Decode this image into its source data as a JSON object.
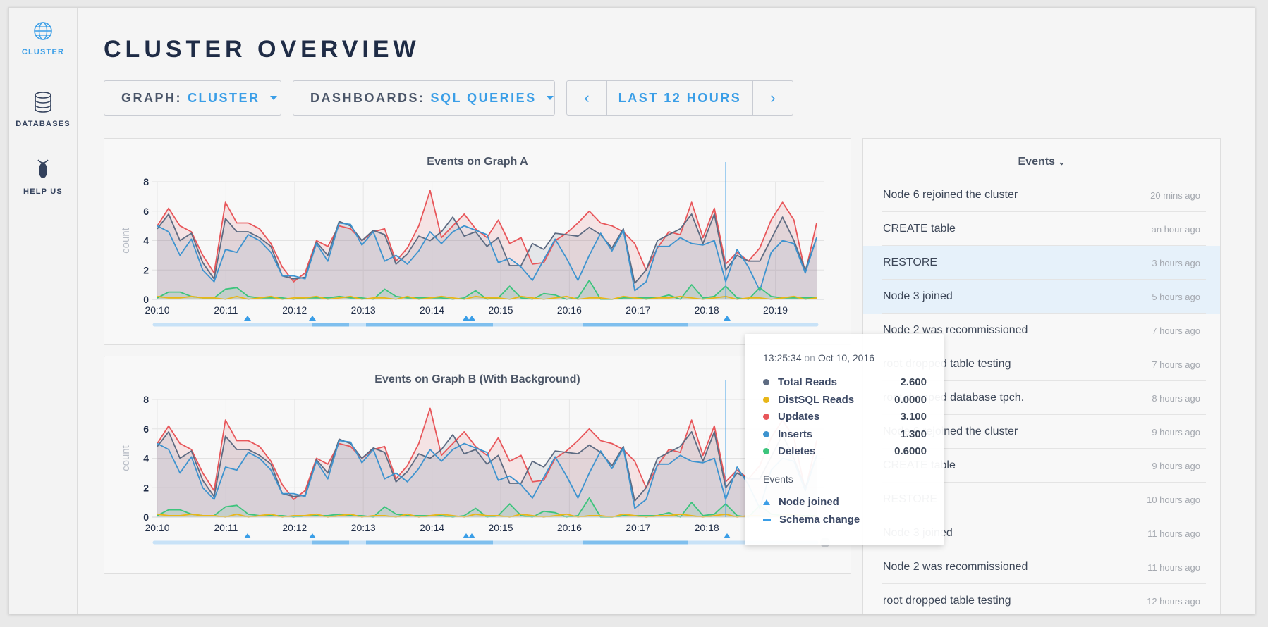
{
  "sidebar": {
    "items": [
      {
        "label": "CLUSTER",
        "icon": "globe-icon"
      },
      {
        "label": "DATABASES",
        "icon": "database-icon"
      },
      {
        "label": "HELP US",
        "icon": "cockroach-icon"
      }
    ]
  },
  "page_title": "CLUSTER OVERVIEW",
  "graph_selector": {
    "label": "GRAPH:",
    "value": "CLUSTER"
  },
  "dashboard_selector": {
    "label": "DASHBOARDS:",
    "value": "SQL QUERIES"
  },
  "time_range": {
    "label": "LAST 12 HOURS",
    "prev": "‹",
    "next": "›"
  },
  "colors": {
    "accent": "#3a9ee7",
    "total_reads": "#5d6b82",
    "distsql_reads": "#e8b618",
    "updates": "#e8565a",
    "inserts": "#3d93cf",
    "deletes": "#3cc47c"
  },
  "charts": [
    {
      "title": "Events on Graph A"
    },
    {
      "title": "Events on Graph B (With Background)"
    }
  ],
  "chart_data": [
    {
      "type": "line",
      "title": "Events on Graph A",
      "ylabel": "count",
      "ylim": [
        0,
        8
      ],
      "yticks": [
        0,
        2,
        4,
        6,
        8
      ],
      "xticks": [
        "20:10",
        "20:11",
        "20:12",
        "20:13",
        "20:14",
        "20:15",
        "20:16",
        "20:17",
        "20:18",
        "20:19"
      ],
      "x_range": [
        0,
        98
      ],
      "series": [
        {
          "name": "Total Reads",
          "values": [
            4.8,
            5.8,
            4.0,
            4.5,
            2.5,
            1.4,
            5.5,
            4.6,
            4.6,
            4.2,
            3.6,
            1.6,
            1.4,
            1.5,
            3.9,
            3.0,
            5.3,
            5.0,
            4.0,
            4.7,
            4.4,
            2.4,
            3.1,
            4.3,
            4.0,
            4.6,
            5.6,
            4.3,
            4.6,
            3.6,
            4.2,
            2.3,
            2.3,
            3.8,
            3.4,
            4.5,
            4.4,
            4.3,
            4.9,
            4.4,
            3.5,
            4.8,
            1.1,
            2.0,
            4.0,
            4.4,
            4.8,
            5.8,
            3.8,
            5.8,
            2.0,
            3.0,
            2.6,
            2.6,
            4.1,
            5.6,
            4.0,
            2.0,
            4.2
          ]
        },
        {
          "name": "DistSQL Reads",
          "values": [
            0.2,
            0.1,
            0.1,
            0.2,
            0.1,
            0.1,
            0.0,
            0.2,
            0.0,
            0.1,
            0.2,
            0.0,
            0.1,
            0.1,
            0.2,
            0.0,
            0.1,
            0.2,
            0.0,
            0.1,
            0.1,
            0.0,
            0.2,
            0.0,
            0.1,
            0.2,
            0.1,
            0.0,
            0.2,
            0.1,
            0.1,
            0.0,
            0.2,
            0.1,
            0.0,
            0.1,
            0.2,
            0.0,
            0.1,
            0.1,
            0.0,
            0.2,
            0.1,
            0.0,
            0.1,
            0.1,
            0.2,
            0.1,
            0.0,
            0.1,
            0.2,
            0.0,
            0.1,
            0.1,
            0.0,
            0.1,
            0.2,
            0.0,
            0.1
          ]
        },
        {
          "name": "Updates",
          "values": [
            5.0,
            6.2,
            5.0,
            4.6,
            3.0,
            1.8,
            6.6,
            5.2,
            5.2,
            4.8,
            3.8,
            2.2,
            1.2,
            1.8,
            4.0,
            3.6,
            5.0,
            4.8,
            4.0,
            4.6,
            4.8,
            2.6,
            3.5,
            5.0,
            7.4,
            4.2,
            5.0,
            5.8,
            4.8,
            4.2,
            5.4,
            3.8,
            4.2,
            2.4,
            2.5,
            4.0,
            4.5,
            5.2,
            6.0,
            5.2,
            5.0,
            4.6,
            3.8,
            2.0,
            3.5,
            4.6,
            4.4,
            6.6,
            4.2,
            6.2,
            2.4,
            3.2,
            2.6,
            3.5,
            5.4,
            6.6,
            5.4,
            1.8,
            5.2
          ]
        },
        {
          "name": "Inserts",
          "values": [
            5.0,
            4.6,
            3.0,
            4.1,
            2.0,
            1.2,
            3.4,
            3.2,
            4.4,
            4.0,
            3.2,
            1.6,
            1.6,
            1.4,
            3.8,
            2.6,
            5.2,
            5.1,
            3.7,
            4.6,
            2.6,
            3.0,
            2.4,
            3.3,
            4.6,
            3.8,
            4.6,
            5.0,
            4.7,
            4.4,
            2.5,
            2.8,
            2.2,
            1.3,
            2.7,
            4.1,
            2.8,
            1.3,
            3.0,
            4.5,
            3.3,
            4.7,
            0.6,
            1.2,
            3.6,
            3.6,
            4.2,
            3.8,
            3.7,
            4.0,
            1.2,
            3.4,
            2.2,
            0.6,
            3.2,
            4.0,
            3.8,
            1.8,
            4.2
          ]
        },
        {
          "name": "Deletes",
          "values": [
            0.1,
            0.5,
            0.5,
            0.2,
            0.1,
            0.1,
            0.7,
            0.8,
            0.2,
            0.1,
            0.1,
            0.1,
            0.0,
            0.1,
            0.1,
            0.1,
            0.2,
            0.1,
            0.1,
            0.0,
            0.7,
            0.2,
            0.1,
            0.1,
            0.1,
            0.1,
            0.0,
            0.1,
            0.6,
            0.0,
            0.1,
            0.9,
            0.1,
            0.0,
            0.4,
            0.3,
            0.0,
            0.1,
            1.3,
            0.0,
            0.0,
            0.1,
            0.1,
            0.1,
            0.1,
            0.3,
            0.0,
            1.0,
            0.1,
            0.2,
            0.9,
            0.1,
            0.0,
            0.8,
            0.2,
            0.1,
            0.1,
            0.1,
            0.1
          ]
        }
      ]
    },
    {
      "type": "line",
      "title": "Events on Graph B (With Background)",
      "ylabel": "count",
      "ylim": [
        0,
        8
      ],
      "yticks": [
        0,
        2,
        4,
        6,
        8
      ],
      "xticks": [
        "20:10",
        "20:11",
        "20:12",
        "20:13",
        "20:14",
        "20:15",
        "20:16",
        "20:17",
        "20:18"
      ],
      "same_series_as": "Events on Graph A"
    }
  ],
  "tooltip": {
    "time": "13:25:34",
    "on": "on",
    "date": "Oct 10, 2016",
    "rows": [
      {
        "name": "Total Reads",
        "value": "2.600"
      },
      {
        "name": "DistSQL Reads",
        "value": "0.0000"
      },
      {
        "name": "Updates",
        "value": "3.100"
      },
      {
        "name": "Inserts",
        "value": "1.300"
      },
      {
        "name": "Deletes",
        "value": "0.6000"
      }
    ],
    "events_title": "Events",
    "events": [
      {
        "name": "Node joined",
        "icon": "triangle-icon"
      },
      {
        "name": "Schema change",
        "icon": "bar-icon"
      }
    ]
  },
  "events_panel": {
    "title": "Events",
    "items": [
      {
        "name": "Node 6 rejoined the cluster",
        "time": "20 mins ago"
      },
      {
        "name": "CREATE table",
        "time": "an hour ago"
      },
      {
        "name": "RESTORE",
        "time": "3 hours ago"
      },
      {
        "name": "Node 3 joined",
        "time": "5 hours ago"
      },
      {
        "name": "Node 2 was recommissioned",
        "time": "7 hours ago"
      },
      {
        "name": "root dropped table testing",
        "time": "7 hours ago"
      },
      {
        "name": "root dropped database tpch.",
        "time": "8 hours ago"
      },
      {
        "name": "Node 6 rejoined the cluster",
        "time": "9 hours ago"
      },
      {
        "name": "CREATE table",
        "time": "9 hours ago"
      },
      {
        "name": "RESTORE",
        "time": "10 hours ago"
      },
      {
        "name": "Node 3 joined",
        "time": "11 hours ago"
      },
      {
        "name": "Node 2 was recommissioned",
        "time": "11 hours ago"
      },
      {
        "name": "root dropped table testing",
        "time": "12 hours ago"
      }
    ]
  }
}
